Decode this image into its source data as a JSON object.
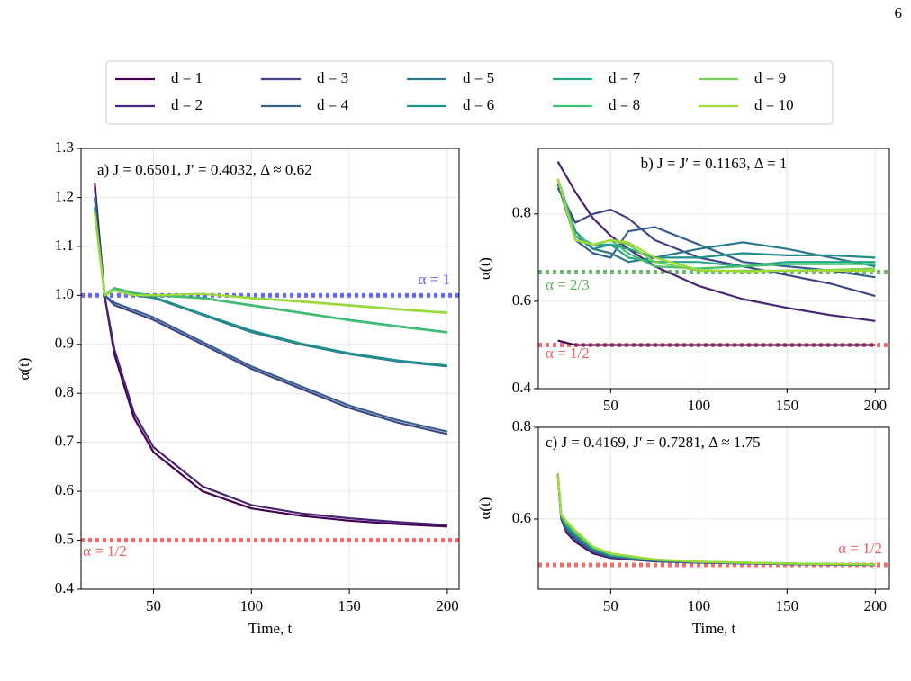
{
  "page_number": "6",
  "chart_data": [
    {
      "type": "line",
      "annotation": "a) J = 0.6501,  J′ = 0.4032,  Δ ≈ 0.62",
      "xlabel": "Time, t",
      "ylabel": "α(t)",
      "grid": true,
      "legend": "top",
      "x": [
        20,
        25,
        30,
        40,
        50,
        75,
        100,
        125,
        150,
        175,
        200
      ],
      "xlim": [
        13,
        206
      ],
      "xticks": [
        50,
        100,
        150,
        200
      ],
      "ylim": [
        0.4,
        1.3
      ],
      "yticks": [
        0.4,
        0.5,
        0.6,
        0.7,
        0.8,
        0.9,
        {
          "value": 1,
          "label": "1.0"
        },
        1.1,
        1.2,
        1.3
      ],
      "hlines": [
        {
          "value": 1,
          "label": "α = 1",
          "color": "#5b5bee"
        },
        {
          "value": 0.5,
          "label": "α = 1/2",
          "color": "#f06060"
        }
      ],
      "series": [
        {
          "name": "d = 1",
          "color": "#440154",
          "values": [
            1.23,
            1.0,
            0.88,
            0.75,
            0.68,
            0.6,
            0.565,
            0.55,
            0.54,
            0.533,
            0.528
          ]
        },
        {
          "name": "d = 2",
          "color": "#482475",
          "values": [
            1.22,
            1.0,
            0.89,
            0.76,
            0.69,
            0.61,
            0.572,
            0.555,
            0.545,
            0.537,
            0.531
          ]
        },
        {
          "name": "d = 3",
          "color": "#414487",
          "values": [
            1.2,
            1.0,
            0.98,
            0.965,
            0.95,
            0.9,
            0.85,
            0.81,
            0.77,
            0.74,
            0.717
          ]
        },
        {
          "name": "d = 4",
          "color": "#355f8d",
          "values": [
            1.2,
            1.0,
            0.985,
            0.97,
            0.955,
            0.905,
            0.855,
            0.815,
            0.775,
            0.745,
            0.722
          ]
        },
        {
          "name": "d = 5",
          "color": "#2a788e",
          "values": [
            1.18,
            1.0,
            1.01,
            1.0,
            0.995,
            0.96,
            0.925,
            0.9,
            0.88,
            0.865,
            0.855
          ]
        },
        {
          "name": "d = 6",
          "color": "#21918c",
          "values": [
            1.18,
            1.0,
            1.012,
            1.002,
            0.997,
            0.962,
            0.928,
            0.902,
            0.882,
            0.867,
            0.857
          ]
        },
        {
          "name": "d = 7",
          "color": "#22a884",
          "values": [
            1.17,
            1.0,
            1.015,
            1.005,
            1.0,
            0.995,
            0.98,
            0.965,
            0.95,
            0.937,
            0.925
          ]
        },
        {
          "name": "d = 8",
          "color": "#44bf70",
          "values": [
            1.17,
            1.0,
            1.014,
            1.004,
            1.0,
            0.994,
            0.979,
            0.964,
            0.949,
            0.936,
            0.924
          ]
        },
        {
          "name": "d = 9",
          "color": "#7ad151",
          "values": [
            1.17,
            1.0,
            1.01,
            1.0,
            1.0,
            1.003,
            0.995,
            0.988,
            0.98,
            0.972,
            0.965
          ]
        },
        {
          "name": "d = 10",
          "color": "#a0da39",
          "values": [
            1.17,
            1.0,
            1.01,
            1.0,
            1.0,
            1.003,
            0.994,
            0.987,
            0.979,
            0.971,
            0.964
          ]
        }
      ]
    },
    {
      "type": "line",
      "annotation": "b) J = J′ = 0.1163,  Δ = 1",
      "ylabel": "α(t)",
      "grid": true,
      "x": [
        20,
        30,
        40,
        50,
        60,
        75,
        100,
        125,
        150,
        175,
        200
      ],
      "xlim": [
        9,
        208
      ],
      "xticks": [
        50,
        100,
        150,
        200
      ],
      "ylim": [
        0.4,
        0.95
      ],
      "yticks": [
        0.4,
        0.6,
        0.8
      ],
      "hlines": [
        {
          "value": 0.6667,
          "label": "α = 2/3",
          "color": "#5cae5c"
        },
        {
          "value": 0.5,
          "label": "α = 1/2",
          "color": "#f06060"
        }
      ],
      "series": [
        {
          "color": "#440154",
          "values": [
            0.51,
            0.5,
            0.5,
            0.5,
            0.5,
            0.5,
            0.5,
            0.5,
            0.5,
            0.5,
            0.5
          ]
        },
        {
          "color": "#482475",
          "values": [
            0.92,
            0.85,
            0.79,
            0.75,
            0.72,
            0.68,
            0.635,
            0.605,
            0.585,
            0.568,
            0.555
          ]
        },
        {
          "color": "#414487",
          "values": [
            0.86,
            0.78,
            0.8,
            0.81,
            0.79,
            0.74,
            0.7,
            0.68,
            0.66,
            0.64,
            0.612
          ]
        },
        {
          "color": "#355f8d",
          "values": [
            0.87,
            0.74,
            0.71,
            0.7,
            0.76,
            0.77,
            0.73,
            0.69,
            0.68,
            0.67,
            0.655
          ]
        },
        {
          "color": "#2a788e",
          "values": [
            0.87,
            0.75,
            0.72,
            0.71,
            0.69,
            0.7,
            0.72,
            0.735,
            0.72,
            0.7,
            0.68
          ]
        },
        {
          "color": "#21918c",
          "values": [
            0.88,
            0.76,
            0.72,
            0.73,
            0.72,
            0.7,
            0.7,
            0.71,
            0.705,
            0.705,
            0.7
          ]
        },
        {
          "color": "#22a884",
          "values": [
            0.88,
            0.75,
            0.73,
            0.73,
            0.7,
            0.69,
            0.69,
            0.68,
            0.69,
            0.69,
            0.69
          ]
        },
        {
          "color": "#44bf70",
          "values": [
            0.88,
            0.75,
            0.73,
            0.74,
            0.71,
            0.68,
            0.675,
            0.68,
            0.685,
            0.685,
            0.685
          ]
        },
        {
          "color": "#7ad151",
          "values": [
            0.88,
            0.74,
            0.73,
            0.74,
            0.73,
            0.69,
            0.67,
            0.67,
            0.67,
            0.672,
            0.675
          ]
        },
        {
          "color": "#a0da39",
          "values": [
            0.88,
            0.74,
            0.73,
            0.74,
            0.735,
            0.7,
            0.672,
            0.668,
            0.67,
            0.67,
            0.67
          ]
        }
      ]
    },
    {
      "type": "line",
      "annotation": "c) J = 0.4169,  J′ = 0.7281,  Δ ≈ 1.75",
      "xlabel": "Time, t",
      "ylabel": "α(t)",
      "grid": true,
      "x": [
        20,
        22,
        25,
        30,
        40,
        50,
        75,
        100,
        150,
        200
      ],
      "xlim": [
        9,
        208
      ],
      "xticks": [
        50,
        100,
        150,
        200
      ],
      "ylim": [
        0.447,
        0.8
      ],
      "yticks": [
        0.6,
        0.8
      ],
      "hlines": [
        {
          "value": 0.5,
          "label": "α = 1/2",
          "color": "#f06060"
        }
      ],
      "series": [
        {
          "color": "#440154",
          "values": [
            0.7,
            0.6,
            0.57,
            0.55,
            0.525,
            0.515,
            0.508,
            0.505,
            0.502,
            0.5
          ]
        },
        {
          "color": "#482475",
          "values": [
            0.7,
            0.6,
            0.572,
            0.552,
            0.527,
            0.516,
            0.508,
            0.505,
            0.502,
            0.5
          ]
        },
        {
          "color": "#414487",
          "values": [
            0.7,
            0.602,
            0.575,
            0.555,
            0.529,
            0.517,
            0.509,
            0.505,
            0.502,
            0.5
          ]
        },
        {
          "color": "#355f8d",
          "values": [
            0.7,
            0.603,
            0.578,
            0.558,
            0.531,
            0.519,
            0.509,
            0.506,
            0.502,
            0.5
          ]
        },
        {
          "color": "#2a788e",
          "values": [
            0.7,
            0.604,
            0.582,
            0.562,
            0.533,
            0.52,
            0.51,
            0.506,
            0.502,
            0.501
          ]
        },
        {
          "color": "#21918c",
          "values": [
            0.7,
            0.605,
            0.585,
            0.565,
            0.535,
            0.521,
            0.51,
            0.506,
            0.503,
            0.501
          ]
        },
        {
          "color": "#22a884",
          "values": [
            0.7,
            0.606,
            0.588,
            0.568,
            0.537,
            0.522,
            0.511,
            0.506,
            0.503,
            0.501
          ]
        },
        {
          "color": "#44bf70",
          "values": [
            0.7,
            0.607,
            0.59,
            0.57,
            0.538,
            0.523,
            0.511,
            0.507,
            0.503,
            0.501
          ]
        },
        {
          "color": "#7ad151",
          "values": [
            0.7,
            0.608,
            0.593,
            0.573,
            0.539,
            0.524,
            0.512,
            0.507,
            0.503,
            0.501
          ]
        },
        {
          "color": "#a0da39",
          "values": [
            0.7,
            0.61,
            0.595,
            0.575,
            0.54,
            0.525,
            0.512,
            0.507,
            0.503,
            0.501
          ]
        }
      ]
    }
  ]
}
